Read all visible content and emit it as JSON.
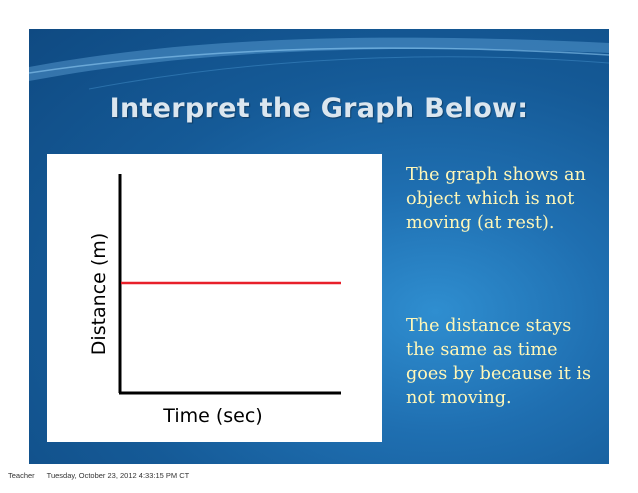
{
  "slide": {
    "title": "Interpret the Graph Below:",
    "paragraph_1": "The graph shows an object which is not moving (at rest).",
    "paragraph_2": "The distance stays the same as time goes by because it is not moving.",
    "colors": {
      "background_dark": "#0f4a82",
      "background_light": "#2f8ed0",
      "title_text": "#dbe6ef",
      "body_text": "#fff7b8",
      "line": "#e8202a"
    }
  },
  "graph": {
    "ylabel": "Distance (m)",
    "xlabel": "Time (sec)"
  },
  "chart_data": {
    "type": "line",
    "title": "",
    "xlabel": "Time (sec)",
    "ylabel": "Distance (m)",
    "x": [
      0,
      1
    ],
    "series": [
      {
        "values": [
          0.5,
          0.5
        ],
        "color": "#e8202a"
      }
    ],
    "xlim": [
      0,
      1
    ],
    "ylim": [
      0,
      1
    ],
    "grid": false
  },
  "footer": {
    "author": "Teacher",
    "timestamp": "Tuesday, October 23, 2012 4:33:15 PM CT"
  }
}
